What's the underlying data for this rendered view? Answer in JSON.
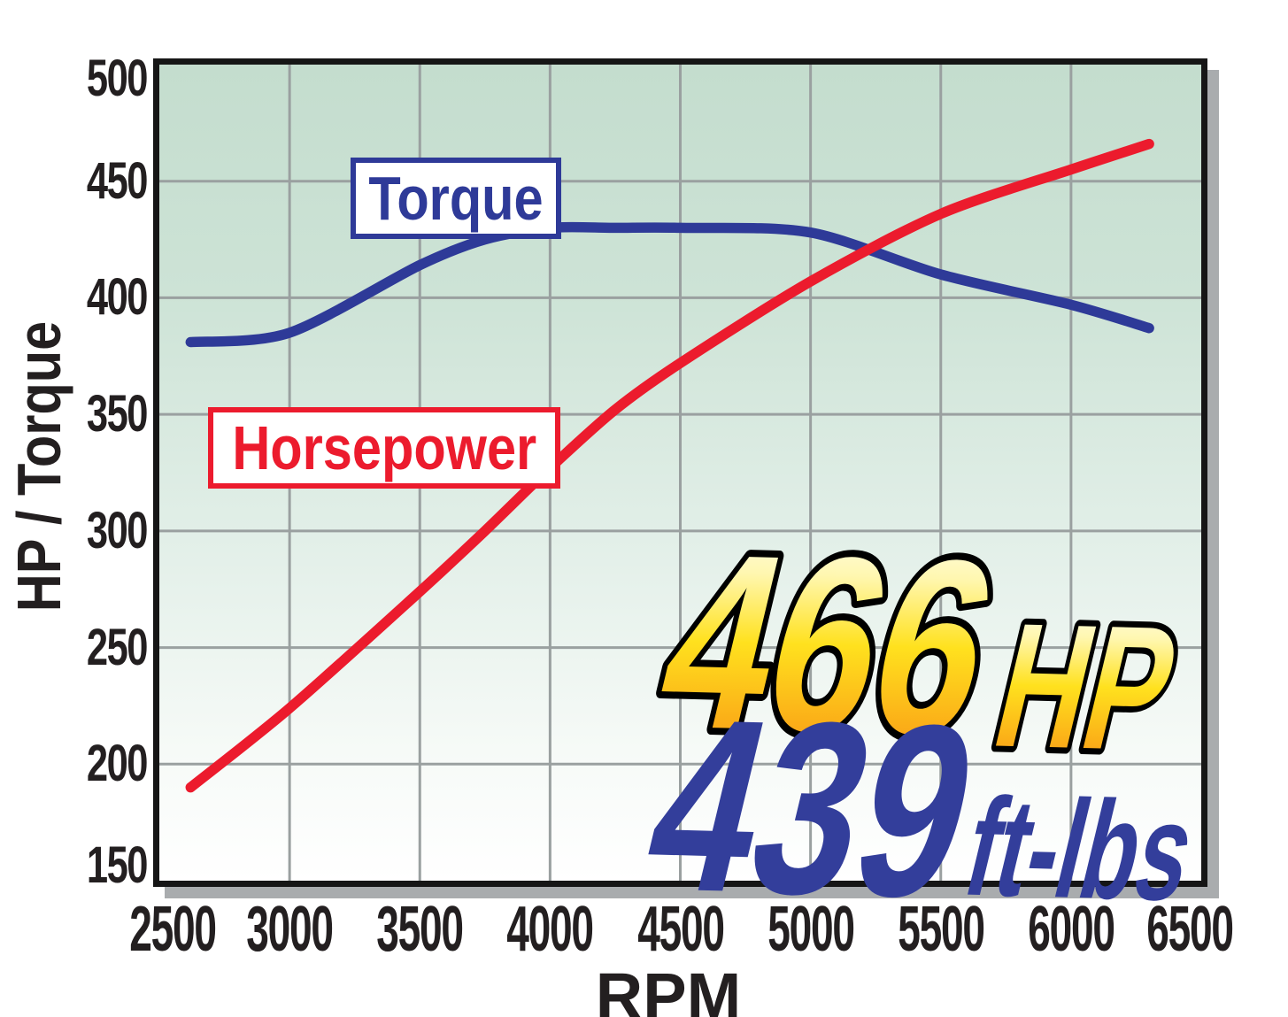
{
  "chart_data": {
    "type": "line",
    "title": "",
    "xlabel": "RPM",
    "ylabel": "HP / Torque",
    "xlim": [
      2500,
      6500
    ],
    "ylim": [
      150,
      500
    ],
    "x_ticks": [
      2500,
      3000,
      3500,
      4000,
      4500,
      5000,
      5500,
      6000,
      6500
    ],
    "y_ticks": [
      500,
      450,
      400,
      350,
      300,
      250,
      200,
      150
    ],
    "grid": true,
    "legend_position": "on-chart labeled boxes",
    "series": [
      {
        "name": "Torque",
        "color": "#2e3a98",
        "x": [
          2620,
          3000,
          3500,
          3750,
          4000,
          4250,
          4500,
          5000,
          5500,
          6000,
          6300
        ],
        "values": [
          381,
          385,
          414,
          425,
          430,
          430,
          430,
          428,
          410,
          397,
          387
        ]
      },
      {
        "name": "Horsepower",
        "color": "#ec1b2d",
        "x": [
          2620,
          3000,
          3500,
          3750,
          4000,
          4250,
          4500,
          5000,
          5500,
          6000,
          6300
        ],
        "values": [
          190,
          224,
          274,
          300,
          327,
          352,
          372,
          407,
          436,
          455,
          466
        ]
      }
    ],
    "annotations": [
      {
        "value": "466",
        "unit": "HP",
        "style": "gold-gradient-black-outline-italic"
      },
      {
        "value": "439",
        "unit": "ft-lbs",
        "style": "solid-blue-italic"
      }
    ]
  },
  "colors": {
    "plot_bg_top": "#c4ddce",
    "plot_bg_bottom": "#ffffff",
    "gridline": "#9aa0a0",
    "axis_border": "#161616",
    "plot_shadow": "#a9acae",
    "torque_blue": "#2e3a98",
    "horsepower_red": "#ec1b2d",
    "tick_text": "#231f20",
    "gold_top": "#ffffff",
    "gold_mid": "#ffe11e",
    "gold_bottom": "#f6891f",
    "annotation_blue": "#333e9b"
  }
}
